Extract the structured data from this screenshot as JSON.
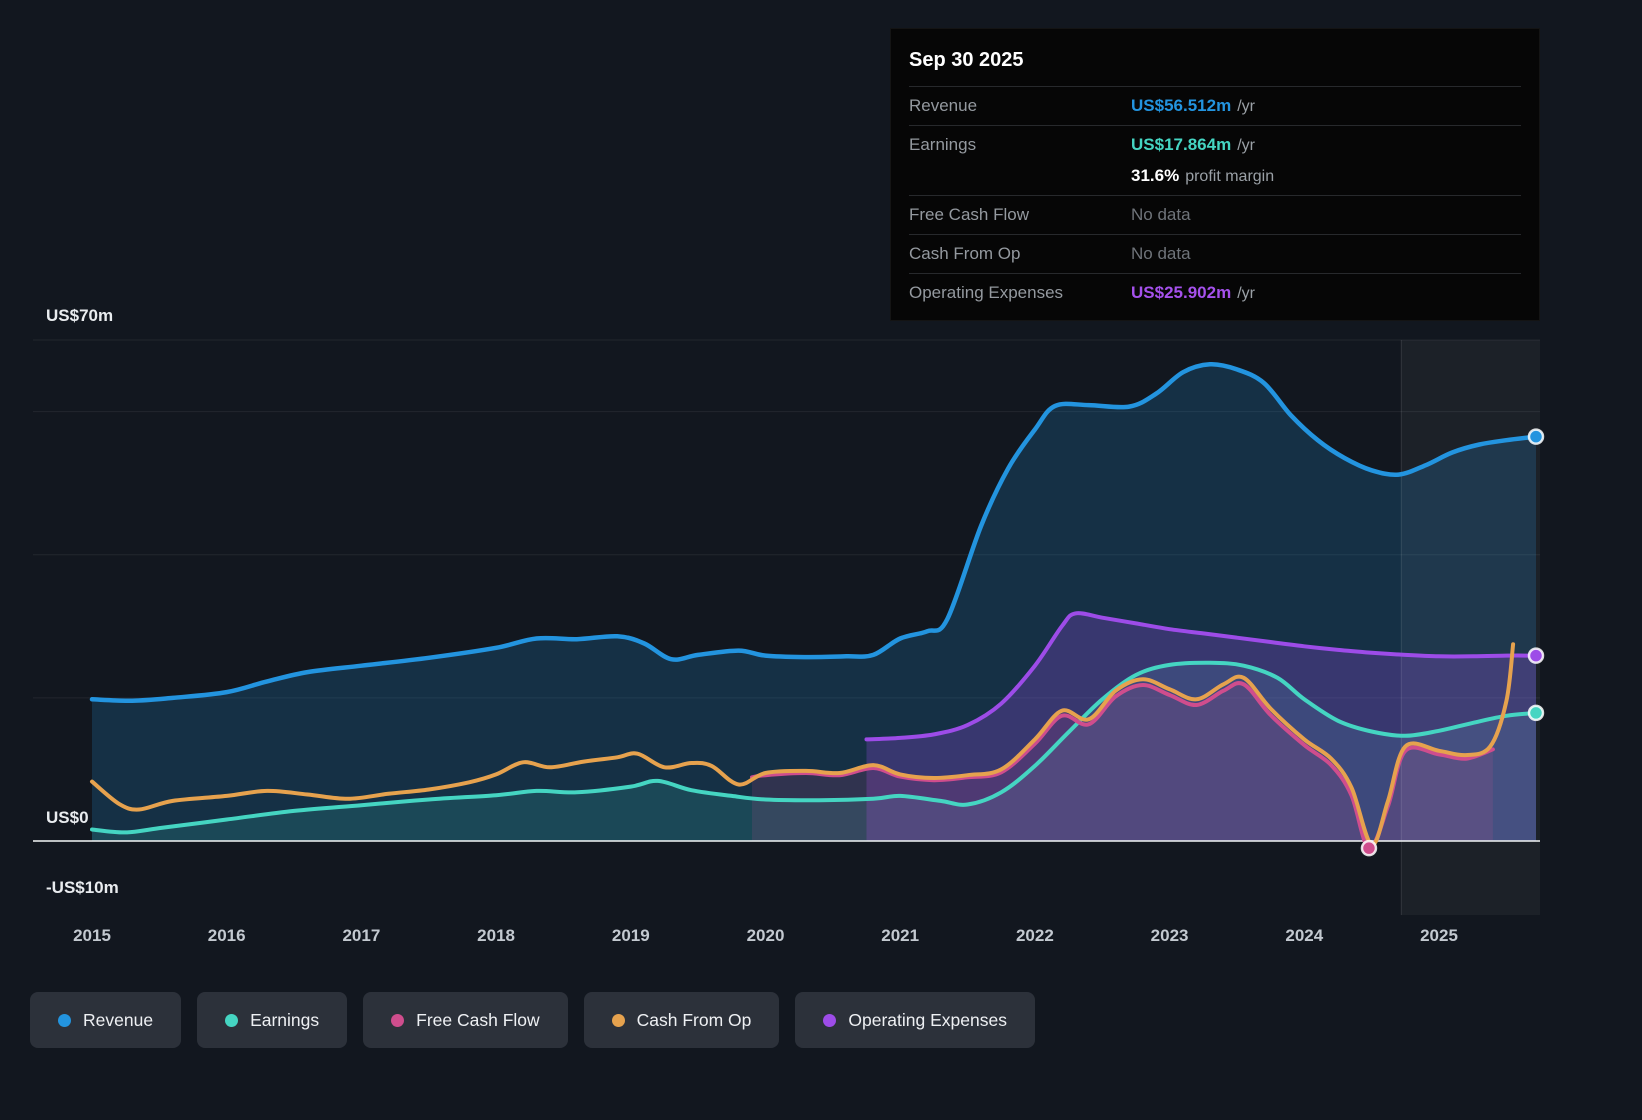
{
  "tooltip": {
    "date": "Sep 30 2025",
    "rows": [
      {
        "label": "Revenue",
        "value": "US$56.512m",
        "suffix": "/yr",
        "color": "#2394df"
      },
      {
        "label": "Earnings",
        "value": "US$17.864m",
        "suffix": "/yr",
        "color": "#45d5c2",
        "note_bold": "31.6%",
        "note": "profit margin"
      },
      {
        "label": "Free Cash Flow",
        "value": "No data"
      },
      {
        "label": "Cash From Op",
        "value": "No data"
      },
      {
        "label": "Operating Expenses",
        "value": "US$25.902m",
        "suffix": "/yr",
        "color": "#a551ec"
      }
    ]
  },
  "legend": [
    {
      "label": "Revenue",
      "color": "#2394df"
    },
    {
      "label": "Earnings",
      "color": "#45d5c2"
    },
    {
      "label": "Free Cash Flow",
      "color": "#cf4d8d"
    },
    {
      "label": "Cash From Op",
      "color": "#e6a24e"
    },
    {
      "label": "Operating Expenses",
      "color": "#9d4ce8"
    }
  ],
  "chart_data": {
    "type": "area",
    "x_unit": "year",
    "xlim": [
      2014.56,
      2025.75
    ],
    "ylim": [
      -10,
      70
    ],
    "y_axis_labels": [
      "US$70m",
      "US$0",
      "-US$10m"
    ],
    "y_gridlines": [
      70,
      60,
      40,
      20
    ],
    "zero_line": 0,
    "x_ticks": [
      "2015",
      "2016",
      "2017",
      "2018",
      "2019",
      "2020",
      "2021",
      "2022",
      "2023",
      "2024",
      "2025"
    ],
    "highlight_band": {
      "from": 2024.72,
      "to": 2025.75
    },
    "series": [
      {
        "name": "Revenue",
        "color": "#2394df",
        "line_width": 4.5,
        "fill_opacity": 0.2,
        "end_marker": true,
        "points": [
          [
            2015.0,
            19.8
          ],
          [
            2015.3,
            19.6
          ],
          [
            2015.6,
            20.0
          ],
          [
            2016.0,
            20.8
          ],
          [
            2016.3,
            22.3
          ],
          [
            2016.6,
            23.6
          ],
          [
            2017.0,
            24.5
          ],
          [
            2017.5,
            25.6
          ],
          [
            2018.0,
            27.0
          ],
          [
            2018.3,
            28.3
          ],
          [
            2018.6,
            28.2
          ],
          [
            2018.9,
            28.6
          ],
          [
            2019.1,
            27.6
          ],
          [
            2019.3,
            25.4
          ],
          [
            2019.5,
            26.0
          ],
          [
            2019.8,
            26.6
          ],
          [
            2020.0,
            25.9
          ],
          [
            2020.3,
            25.7
          ],
          [
            2020.6,
            25.8
          ],
          [
            2020.8,
            26.0
          ],
          [
            2021.0,
            28.3
          ],
          [
            2021.2,
            29.3
          ],
          [
            2021.35,
            31.0
          ],
          [
            2021.6,
            44.0
          ],
          [
            2021.8,
            52.0
          ],
          [
            2022.0,
            57.5
          ],
          [
            2022.15,
            60.8
          ],
          [
            2022.4,
            60.9
          ],
          [
            2022.7,
            60.7
          ],
          [
            2022.9,
            62.5
          ],
          [
            2023.1,
            65.5
          ],
          [
            2023.3,
            66.6
          ],
          [
            2023.5,
            65.9
          ],
          [
            2023.7,
            64.0
          ],
          [
            2023.9,
            59.5
          ],
          [
            2024.1,
            56.0
          ],
          [
            2024.3,
            53.5
          ],
          [
            2024.5,
            51.8
          ],
          [
            2024.7,
            51.2
          ],
          [
            2024.9,
            52.5
          ],
          [
            2025.1,
            54.3
          ],
          [
            2025.3,
            55.4
          ],
          [
            2025.5,
            56.0
          ],
          [
            2025.72,
            56.5
          ]
        ]
      },
      {
        "name": "Earnings",
        "color": "#45d5c2",
        "line_width": 4,
        "fill_opacity": 0.15,
        "end_marker": true,
        "points": [
          [
            2015.0,
            1.6
          ],
          [
            2015.25,
            1.2
          ],
          [
            2015.5,
            1.8
          ],
          [
            2016.0,
            3.0
          ],
          [
            2016.5,
            4.2
          ],
          [
            2017.0,
            5.0
          ],
          [
            2017.5,
            5.8
          ],
          [
            2018.0,
            6.4
          ],
          [
            2018.3,
            7.0
          ],
          [
            2018.6,
            6.8
          ],
          [
            2019.0,
            7.6
          ],
          [
            2019.2,
            8.4
          ],
          [
            2019.45,
            7.1
          ],
          [
            2019.75,
            6.3
          ],
          [
            2020.0,
            5.8
          ],
          [
            2020.4,
            5.7
          ],
          [
            2020.8,
            5.9
          ],
          [
            2021.0,
            6.3
          ],
          [
            2021.3,
            5.6
          ],
          [
            2021.5,
            5.1
          ],
          [
            2021.75,
            6.8
          ],
          [
            2022.0,
            10.5
          ],
          [
            2022.25,
            15.2
          ],
          [
            2022.5,
            19.8
          ],
          [
            2022.75,
            23.2
          ],
          [
            2023.0,
            24.6
          ],
          [
            2023.3,
            24.9
          ],
          [
            2023.55,
            24.5
          ],
          [
            2023.8,
            22.8
          ],
          [
            2024.0,
            19.8
          ],
          [
            2024.25,
            16.8
          ],
          [
            2024.5,
            15.3
          ],
          [
            2024.75,
            14.7
          ],
          [
            2025.0,
            15.4
          ],
          [
            2025.25,
            16.5
          ],
          [
            2025.5,
            17.5
          ],
          [
            2025.72,
            17.9
          ]
        ]
      },
      {
        "name": "Operating Expenses",
        "color": "#9d4ce8",
        "line_width": 4,
        "fill_opacity": 0.26,
        "end_marker": true,
        "points": [
          [
            2020.75,
            14.2
          ],
          [
            2021.0,
            14.4
          ],
          [
            2021.25,
            14.9
          ],
          [
            2021.5,
            16.2
          ],
          [
            2021.75,
            19.2
          ],
          [
            2022.0,
            24.5
          ],
          [
            2022.2,
            30.0
          ],
          [
            2022.3,
            31.8
          ],
          [
            2022.5,
            31.2
          ],
          [
            2022.75,
            30.4
          ],
          [
            2023.0,
            29.6
          ],
          [
            2023.25,
            29.0
          ],
          [
            2023.5,
            28.4
          ],
          [
            2023.75,
            27.8
          ],
          [
            2024.0,
            27.2
          ],
          [
            2024.25,
            26.7
          ],
          [
            2024.5,
            26.3
          ],
          [
            2024.75,
            26.0
          ],
          [
            2025.0,
            25.8
          ],
          [
            2025.25,
            25.8
          ],
          [
            2025.5,
            25.9
          ],
          [
            2025.72,
            25.9
          ]
        ]
      },
      {
        "name": "Free Cash Flow",
        "color": "#cf4d8d",
        "line_width": 4,
        "fill_opacity": 0.15,
        "markers": [
          [
            2024.48,
            -1.0
          ]
        ],
        "points": [
          [
            2019.9,
            8.9
          ],
          [
            2020.0,
            9.2
          ],
          [
            2020.3,
            9.5
          ],
          [
            2020.55,
            9.2
          ],
          [
            2020.8,
            10.2
          ],
          [
            2021.0,
            9.0
          ],
          [
            2021.25,
            8.5
          ],
          [
            2021.5,
            8.9
          ],
          [
            2021.75,
            9.6
          ],
          [
            2022.0,
            13.6
          ],
          [
            2022.2,
            17.5
          ],
          [
            2022.4,
            16.3
          ],
          [
            2022.6,
            20.2
          ],
          [
            2022.8,
            21.8
          ],
          [
            2023.0,
            20.4
          ],
          [
            2023.2,
            19.0
          ],
          [
            2023.4,
            21.0
          ],
          [
            2023.55,
            21.9
          ],
          [
            2023.75,
            17.6
          ],
          [
            2024.0,
            13.4
          ],
          [
            2024.2,
            10.6
          ],
          [
            2024.35,
            6.4
          ],
          [
            2024.48,
            -1.0
          ],
          [
            2024.62,
            4.8
          ],
          [
            2024.75,
            12.6
          ],
          [
            2025.0,
            12.1
          ],
          [
            2025.2,
            11.5
          ],
          [
            2025.4,
            12.8
          ]
        ]
      },
      {
        "name": "Cash From Op",
        "color": "#e6a24e",
        "line_width": 4,
        "fill_opacity": 0,
        "points": [
          [
            2015.0,
            8.3
          ],
          [
            2015.2,
            5.2
          ],
          [
            2015.35,
            4.4
          ],
          [
            2015.6,
            5.6
          ],
          [
            2016.0,
            6.3
          ],
          [
            2016.3,
            7.0
          ],
          [
            2016.6,
            6.5
          ],
          [
            2016.9,
            5.9
          ],
          [
            2017.2,
            6.6
          ],
          [
            2017.5,
            7.2
          ],
          [
            2017.8,
            8.2
          ],
          [
            2018.0,
            9.3
          ],
          [
            2018.2,
            11.0
          ],
          [
            2018.4,
            10.3
          ],
          [
            2018.65,
            11.1
          ],
          [
            2018.9,
            11.7
          ],
          [
            2019.05,
            12.2
          ],
          [
            2019.25,
            10.3
          ],
          [
            2019.45,
            10.9
          ],
          [
            2019.6,
            10.5
          ],
          [
            2019.8,
            7.9
          ],
          [
            2020.0,
            9.5
          ],
          [
            2020.3,
            9.8
          ],
          [
            2020.55,
            9.5
          ],
          [
            2020.8,
            10.6
          ],
          [
            2021.0,
            9.3
          ],
          [
            2021.25,
            8.8
          ],
          [
            2021.5,
            9.2
          ],
          [
            2021.75,
            10.0
          ],
          [
            2022.0,
            14.2
          ],
          [
            2022.2,
            18.2
          ],
          [
            2022.4,
            17.0
          ],
          [
            2022.6,
            21.0
          ],
          [
            2022.8,
            22.6
          ],
          [
            2023.0,
            21.2
          ],
          [
            2023.2,
            19.8
          ],
          [
            2023.4,
            21.9
          ],
          [
            2023.55,
            22.8
          ],
          [
            2023.75,
            18.5
          ],
          [
            2024.0,
            14.2
          ],
          [
            2024.2,
            11.5
          ],
          [
            2024.35,
            7.5
          ],
          [
            2024.5,
            -0.5
          ],
          [
            2024.62,
            5.5
          ],
          [
            2024.75,
            13.2
          ],
          [
            2025.0,
            12.6
          ],
          [
            2025.2,
            12.0
          ],
          [
            2025.38,
            13.2
          ],
          [
            2025.5,
            19.5
          ],
          [
            2025.55,
            27.5
          ]
        ]
      }
    ]
  }
}
